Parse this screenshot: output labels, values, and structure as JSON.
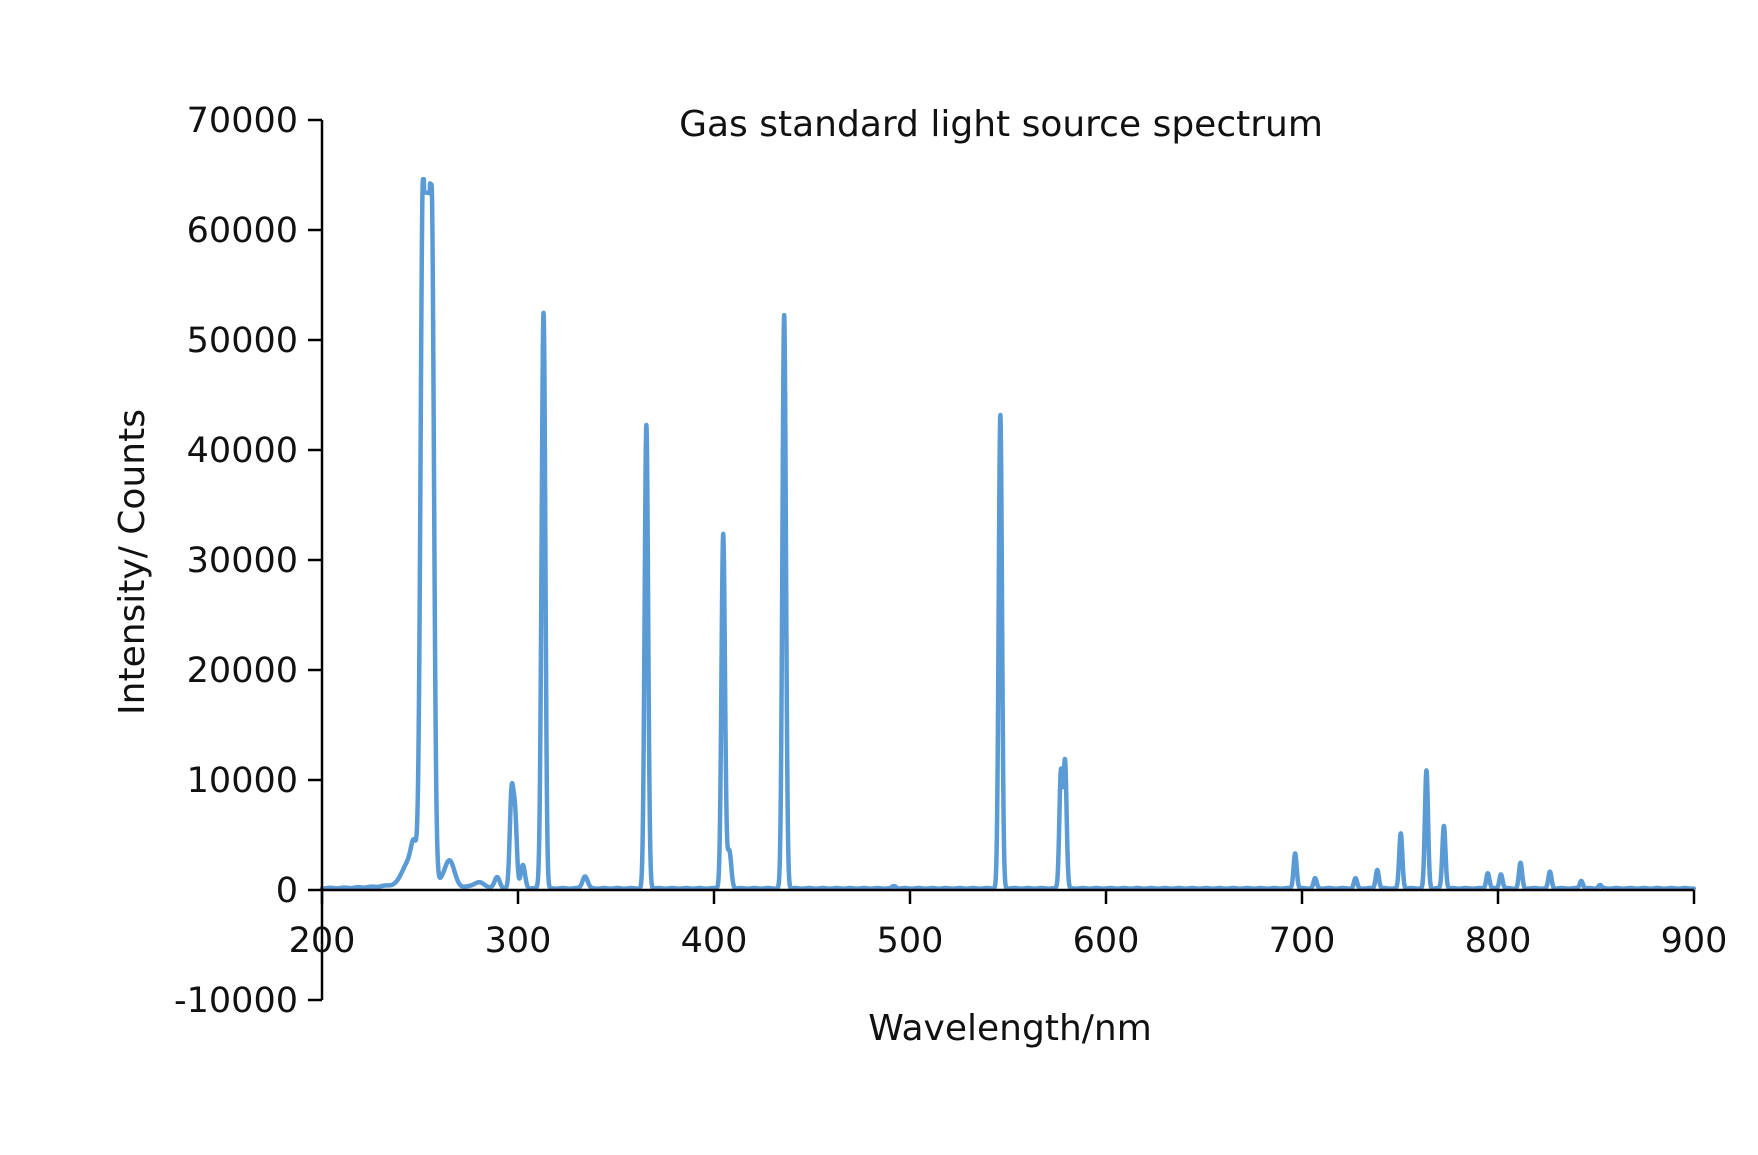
{
  "chart_data": {
    "type": "line",
    "title": "Gas standard light source spectrum",
    "xlabel": "Wavelength/nm",
    "ylabel": "Intensity/ Counts",
    "xlim": [
      200,
      900
    ],
    "ylim": [
      -10000,
      70000
    ],
    "x_ticks": [
      200,
      300,
      400,
      500,
      600,
      700,
      800,
      900
    ],
    "y_ticks": [
      -10000,
      0,
      10000,
      20000,
      30000,
      40000,
      50000,
      60000,
      70000
    ],
    "x_tick_labels": [
      "200",
      "300",
      "400",
      "500",
      "600",
      "700",
      "800",
      "900"
    ],
    "y_tick_labels": [
      "-10000",
      "0",
      "10000",
      "20000",
      "30000",
      "40000",
      "50000",
      "60000",
      "70000"
    ],
    "grid": false,
    "legend": "none",
    "colors": {
      "line": "#5b9bd5",
      "axis": "#000000"
    },
    "series": [
      {
        "peaks": [
          {
            "x": 244,
            "y": 1800,
            "w": 3
          },
          {
            "x": 247,
            "y": 2500,
            "w": 1.5
          },
          {
            "x": 253.7,
            "y": 63200,
            "w": 1.2,
            "flat": true,
            "half": 2.2
          },
          {
            "x": 265,
            "y": 2300,
            "w": 2.5
          },
          {
            "x": 280,
            "y": 500,
            "w": 3
          },
          {
            "x": 289.4,
            "y": 1000,
            "w": 1.3
          },
          {
            "x": 296.7,
            "y": 8400,
            "w": 0.9
          },
          {
            "x": 298.5,
            "y": 6500,
            "w": 0.9
          },
          {
            "x": 302.5,
            "y": 2100,
            "w": 1.1
          },
          {
            "x": 312.6,
            "y": 30500,
            "w": 0.9
          },
          {
            "x": 313.4,
            "y": 28000,
            "w": 0.8
          },
          {
            "x": 334.2,
            "y": 1100,
            "w": 1.3
          },
          {
            "x": 365.5,
            "y": 42100,
            "w": 0.9
          },
          {
            "x": 404.7,
            "y": 32200,
            "w": 0.9
          },
          {
            "x": 407.8,
            "y": 3400,
            "w": 1.0
          },
          {
            "x": 435.8,
            "y": 52100,
            "w": 0.9
          },
          {
            "x": 492,
            "y": 200,
            "w": 1.0
          },
          {
            "x": 546.1,
            "y": 43000,
            "w": 0.85
          },
          {
            "x": 577.0,
            "y": 10500,
            "w": 0.8
          },
          {
            "x": 579.1,
            "y": 11400,
            "w": 0.8
          },
          {
            "x": 696.5,
            "y": 3200,
            "w": 0.8
          },
          {
            "x": 706.7,
            "y": 900,
            "w": 0.8
          },
          {
            "x": 727.3,
            "y": 900,
            "w": 0.8
          },
          {
            "x": 738.4,
            "y": 1700,
            "w": 0.8
          },
          {
            "x": 750.4,
            "y": 5000,
            "w": 0.8
          },
          {
            "x": 763.5,
            "y": 10700,
            "w": 0.8
          },
          {
            "x": 772.4,
            "y": 5700,
            "w": 0.8
          },
          {
            "x": 794.8,
            "y": 1400,
            "w": 0.8
          },
          {
            "x": 801.5,
            "y": 1300,
            "w": 0.8
          },
          {
            "x": 811.5,
            "y": 2300,
            "w": 0.8
          },
          {
            "x": 826.5,
            "y": 1500,
            "w": 0.8
          },
          {
            "x": 842.5,
            "y": 700,
            "w": 0.8
          },
          {
            "x": 852,
            "y": 300,
            "w": 0.8
          }
        ]
      }
    ]
  }
}
